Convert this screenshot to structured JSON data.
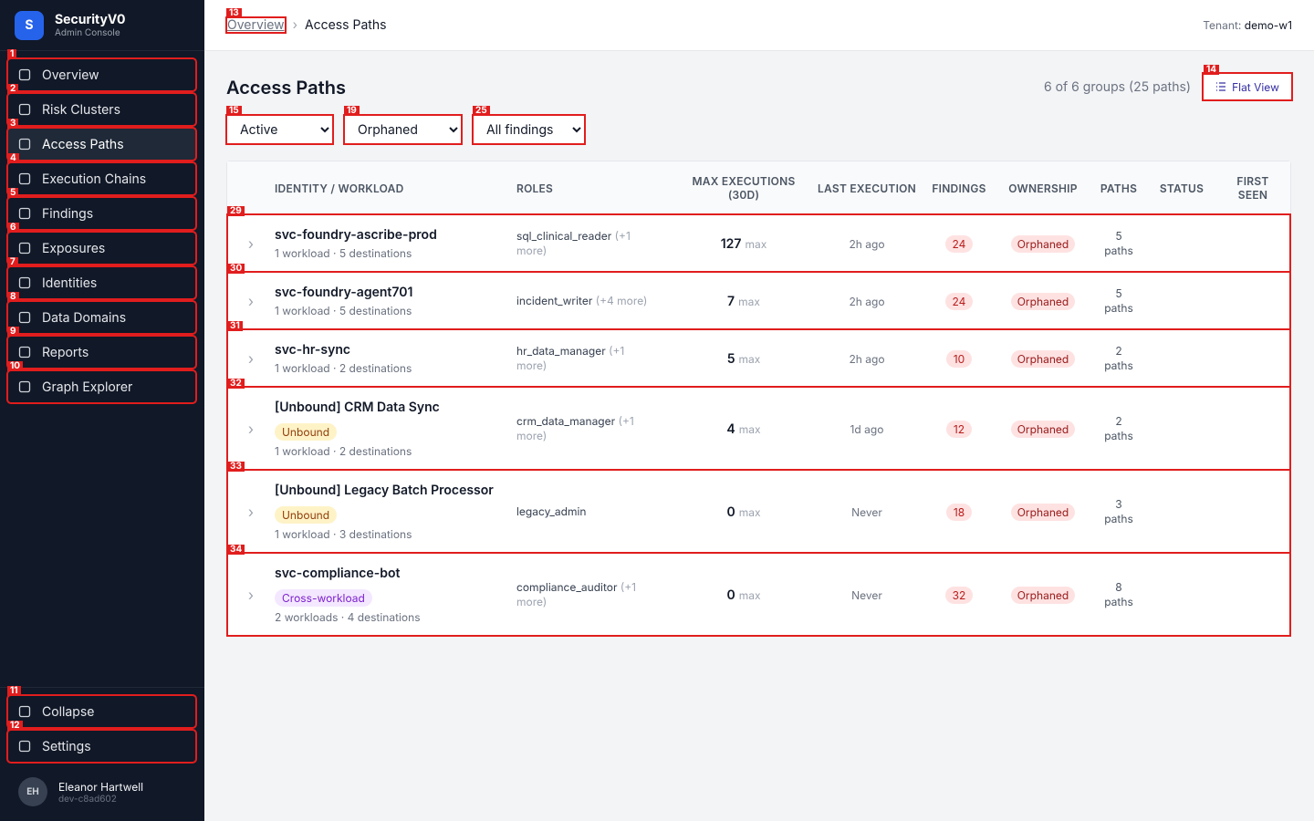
{
  "sidebar": {
    "brand": {
      "initial": "S",
      "name": "SecurityV0",
      "subtitle": "Admin Console"
    },
    "nav": [
      {
        "label": "Overview",
        "marker": "1"
      },
      {
        "label": "Risk Clusters",
        "marker": "2"
      },
      {
        "label": "Access Paths",
        "marker": "3",
        "active": true
      },
      {
        "label": "Execution Chains",
        "marker": "4"
      },
      {
        "label": "Findings",
        "marker": "5"
      },
      {
        "label": "Exposures",
        "marker": "6"
      },
      {
        "label": "Identities",
        "marker": "7"
      },
      {
        "label": "Data Domains",
        "marker": "8"
      },
      {
        "label": "Reports",
        "marker": "9"
      },
      {
        "label": "Graph Explorer",
        "marker": "10"
      }
    ],
    "footer_nav": [
      {
        "label": "Collapse",
        "marker": "11"
      },
      {
        "label": "Settings",
        "marker": "12"
      }
    ],
    "user": {
      "initials": "EH",
      "name": "Eleanor Hartwell",
      "id": "dev-c8ad602"
    }
  },
  "header": {
    "breadcrumb": {
      "link": "Overview",
      "link_marker": "13",
      "separator": "›",
      "current": "Access Paths"
    },
    "tenant_label": "Tenant:",
    "tenant": "demo-w1"
  },
  "page": {
    "title": "Access Paths",
    "summary": "6 of 6 groups (25 paths)",
    "flat_view": "Flat View",
    "flat_view_marker": "14",
    "filters": [
      {
        "value": "Active",
        "marker": "15"
      },
      {
        "value": "Orphaned",
        "marker": "19"
      },
      {
        "value": "All findings",
        "marker": "25"
      }
    ]
  },
  "table": {
    "columns": [
      "IDENTITY / WORKLOAD",
      "ROLES",
      "MAX EXECUTIONS (30D)",
      "LAST EXECUTION",
      "FINDINGS",
      "OWNERSHIP",
      "PATHS",
      "STATUS",
      "FIRST SEEN"
    ],
    "rows": [
      {
        "marker": "29",
        "name": "svc-foundry-ascribe-prod",
        "meta": "1 workload · 5 destinations",
        "role": "sql_clinical_reader",
        "role_more": "(+1 more)",
        "max_exec": 127,
        "max_label": "max",
        "last": "2h ago",
        "findings": 24,
        "ownership": "Orphaned",
        "paths": 5,
        "paths_label": "paths"
      },
      {
        "marker": "30",
        "name": "svc-foundry-agent701",
        "meta": "1 workload · 5 destinations",
        "role": "incident_writer",
        "role_more": "(+4 more)",
        "max_exec": 7,
        "max_label": "max",
        "last": "2h ago",
        "findings": 24,
        "ownership": "Orphaned",
        "paths": 5,
        "paths_label": "paths"
      },
      {
        "marker": "31",
        "name": "svc-hr-sync",
        "meta": "1 workload · 2 destinations",
        "role": "hr_data_manager",
        "role_more": "(+1 more)",
        "max_exec": 5,
        "max_label": "max",
        "last": "2h ago",
        "findings": 10,
        "ownership": "Orphaned",
        "paths": 2,
        "paths_label": "paths"
      },
      {
        "marker": "32",
        "name": "[Unbound] CRM Data Sync",
        "tag": "Unbound",
        "tag_kind": "warn",
        "meta": "1 workload · 2 destinations",
        "role": "crm_data_manager",
        "role_more": "(+1 more)",
        "max_exec": 4,
        "max_label": "max",
        "last": "1d ago",
        "findings": 12,
        "ownership": "Orphaned",
        "paths": 2,
        "paths_label": "paths"
      },
      {
        "marker": "33",
        "name": "[Unbound] Legacy Batch Processor",
        "tag": "Unbound",
        "tag_kind": "warn",
        "meta": "1 workload · 3 destinations",
        "role": "legacy_admin",
        "max_exec": 0,
        "max_label": "max",
        "last": "Never",
        "findings": 18,
        "ownership": "Orphaned",
        "paths": 3,
        "paths_label": "paths"
      },
      {
        "marker": "34",
        "name": "svc-compliance-bot",
        "tag": "Cross-workload",
        "tag_kind": "purple",
        "meta": "2 workloads · 4 destinations",
        "role": "compliance_auditor",
        "role_more": "(+1 more)",
        "max_exec": 0,
        "max_label": "max",
        "last": "Never",
        "findings": 32,
        "ownership": "Orphaned",
        "paths": 8,
        "paths_label": "paths"
      }
    ]
  }
}
